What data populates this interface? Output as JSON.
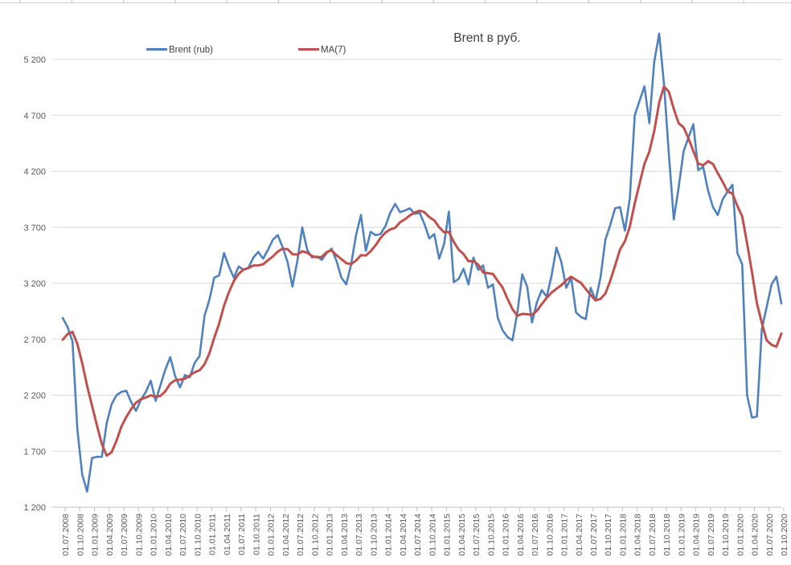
{
  "chart_title": "Brent в руб.",
  "legend": {
    "brent_label": "Brent (rub)",
    "ma_label": "MA(7)"
  },
  "colors": {
    "brent_line": "#4F81BD",
    "ma_line": "#C0504D",
    "gridline": "#D9D9D9",
    "axis_line": "#BFBFBF",
    "tick_text": "#595959",
    "title_text": "#404040",
    "background": "#FFFFFF"
  },
  "chart_data": {
    "type": "line",
    "title": "Brent в руб.",
    "xlabel": "",
    "ylabel": "",
    "ylim": [
      1200,
      5200
    ],
    "y_ticks": [
      1200,
      1700,
      2200,
      2700,
      3200,
      3700,
      4200,
      4700,
      5200
    ],
    "y_tick_labels": [
      "1 200",
      "1 700",
      "2 200",
      "2 700",
      "3 200",
      "3 700",
      "4 200",
      "4 700",
      "5 200"
    ],
    "x_tick_every_n_points": 3,
    "grid": "horizontal",
    "legend_position": "top-inside",
    "categories": [
      "01.07.2008",
      "01.08.2008",
      "01.09.2008",
      "01.10.2008",
      "01.11.2008",
      "01.12.2008",
      "01.01.2009",
      "01.02.2009",
      "01.03.2009",
      "01.04.2009",
      "01.05.2009",
      "01.06.2009",
      "01.07.2009",
      "01.08.2009",
      "01.09.2009",
      "01.10.2009",
      "01.11.2009",
      "01.12.2009",
      "01.01.2010",
      "01.02.2010",
      "01.03.2010",
      "01.04.2010",
      "01.05.2010",
      "01.06.2010",
      "01.07.2010",
      "01.08.2010",
      "01.09.2010",
      "01.10.2010",
      "01.11.2010",
      "01.12.2010",
      "01.01.2011",
      "01.02.2011",
      "01.03.2011",
      "01.04.2011",
      "01.05.2011",
      "01.06.2011",
      "01.07.2011",
      "01.08.2011",
      "01.09.2011",
      "01.10.2011",
      "01.11.2011",
      "01.12.2011",
      "01.01.2012",
      "01.02.2012",
      "01.03.2012",
      "01.04.2012",
      "01.05.2012",
      "01.06.2012",
      "01.07.2012",
      "01.08.2012",
      "01.09.2012",
      "01.10.2012",
      "01.11.2012",
      "01.12.2012",
      "01.01.2013",
      "01.02.2013",
      "01.03.2013",
      "01.04.2013",
      "01.05.2013",
      "01.06.2013",
      "01.07.2013",
      "01.08.2013",
      "01.09.2013",
      "01.10.2013",
      "01.11.2013",
      "01.12.2013",
      "01.01.2014",
      "01.02.2014",
      "01.03.2014",
      "01.04.2014",
      "01.05.2014",
      "01.06.2014",
      "01.07.2014",
      "01.08.2014",
      "01.09.2014",
      "01.10.2014",
      "01.11.2014",
      "01.12.2014",
      "01.01.2015",
      "01.02.2015",
      "01.03.2015",
      "01.04.2015",
      "01.05.2015",
      "01.06.2015",
      "01.07.2015",
      "01.08.2015",
      "01.09.2015",
      "01.10.2015",
      "01.11.2015",
      "01.12.2015",
      "01.01.2016",
      "01.02.2016",
      "01.03.2016",
      "01.04.2016",
      "01.05.2016",
      "01.06.2016",
      "01.07.2016",
      "01.08.2016",
      "01.09.2016",
      "01.10.2016",
      "01.11.2016",
      "01.12.2016",
      "01.01.2017",
      "01.02.2017",
      "01.03.2017",
      "01.04.2017",
      "01.05.2017",
      "01.06.2017",
      "01.07.2017",
      "01.08.2017",
      "01.09.2017",
      "01.10.2017",
      "01.11.2017",
      "01.12.2017",
      "01.01.2018",
      "01.02.2018",
      "01.03.2018",
      "01.04.2018",
      "01.05.2018",
      "01.06.2018",
      "01.07.2018",
      "01.08.2018",
      "01.09.2018",
      "01.10.2018",
      "01.11.2018",
      "01.12.2018",
      "01.01.2019",
      "01.02.2019",
      "01.03.2019",
      "01.04.2019",
      "01.05.2019",
      "01.06.2019",
      "01.07.2019",
      "01.08.2019",
      "01.09.2019",
      "01.10.2019",
      "01.11.2019",
      "01.12.2019",
      "01.01.2020",
      "01.02.2020",
      "01.03.2020",
      "01.04.2020",
      "01.05.2020",
      "01.06.2020",
      "01.07.2020",
      "01.08.2020",
      "01.09.2020",
      "01.10.2020"
    ],
    "series": [
      {
        "name": "Brent (rub)",
        "color": "#4F81BD",
        "values": [
          2890,
          2810,
          2680,
          1900,
          1490,
          1340,
          1640,
          1650,
          1650,
          1950,
          2120,
          2200,
          2230,
          2240,
          2140,
          2060,
          2160,
          2230,
          2330,
          2150,
          2290,
          2430,
          2540,
          2370,
          2270,
          2380,
          2360,
          2490,
          2550,
          2910,
          3050,
          3250,
          3270,
          3470,
          3350,
          3250,
          3350,
          3320,
          3340,
          3430,
          3480,
          3420,
          3500,
          3590,
          3630,
          3520,
          3390,
          3170,
          3400,
          3700,
          3500,
          3430,
          3440,
          3410,
          3470,
          3510,
          3400,
          3250,
          3190,
          3370,
          3630,
          3810,
          3490,
          3660,
          3630,
          3640,
          3710,
          3830,
          3910,
          3835,
          3850,
          3870,
          3820,
          3830,
          3730,
          3600,
          3640,
          3420,
          3550,
          3840,
          3210,
          3240,
          3330,
          3190,
          3430,
          3320,
          3360,
          3160,
          3190,
          2890,
          2780,
          2720,
          2690,
          2940,
          3280,
          3170,
          2850,
          3030,
          3140,
          3080,
          3270,
          3520,
          3390,
          3160,
          3250,
          2940,
          2900,
          2880,
          3160,
          3045,
          3250,
          3590,
          3720,
          3870,
          3880,
          3670,
          3960,
          4700,
          4830,
          4960,
          4630,
          5180,
          5430,
          4980,
          4350,
          3770,
          4060,
          4380,
          4500,
          4620,
          4210,
          4240,
          4030,
          3880,
          3810,
          3950,
          4020,
          4080,
          3470,
          3370,
          2200,
          2000,
          2010,
          2790,
          2990,
          3190,
          3260,
          3020
        ]
      },
      {
        "name": "MA(7)",
        "color": "#C0504D",
        "values": [
          2696,
          2747,
          2766,
          2659,
          2486,
          2283,
          2107,
          1930,
          1764,
          1660,
          1691,
          1793,
          1920,
          2006,
          2076,
          2134,
          2164,
          2180,
          2199,
          2187,
          2194,
          2236,
          2304,
          2334,
          2340,
          2347,
          2377,
          2406,
          2423,
          2476,
          2573,
          2713,
          2840,
          2999,
          3121,
          3221,
          3284,
          3323,
          3336,
          3359,
          3360,
          3370,
          3406,
          3440,
          3484,
          3510,
          3504,
          3460,
          3457,
          3486,
          3473,
          3444,
          3433,
          3436,
          3479,
          3494,
          3451,
          3416,
          3381,
          3371,
          3403,
          3451,
          3449,
          3486,
          3540,
          3604,
          3653,
          3681,
          3696,
          3745,
          3772,
          3806,
          3832,
          3849,
          3835,
          3791,
          3763,
          3701,
          3656,
          3659,
          3570,
          3500,
          3461,
          3397,
          3399,
          3366,
          3297,
          3290,
          3283,
          3220,
          3161,
          3060,
          2970,
          2910,
          2927,
          2924,
          2919,
          2954,
          3014,
          3070,
          3117,
          3151,
          3183,
          3227,
          3259,
          3230,
          3204,
          3149,
          3097,
          3048,
          3061,
          3109,
          3221,
          3359,
          3502,
          3575,
          3706,
          3913,
          4090,
          4267,
          4376,
          4561,
          4813,
          4959,
          4909,
          4757,
          4629,
          4593,
          4496,
          4380,
          4270,
          4254,
          4291,
          4266,
          4184,
          4106,
          4020,
          4001,
          3891,
          3797,
          3557,
          3299,
          3021,
          2846,
          2690,
          2650,
          2634,
          2751
        ]
      }
    ]
  }
}
